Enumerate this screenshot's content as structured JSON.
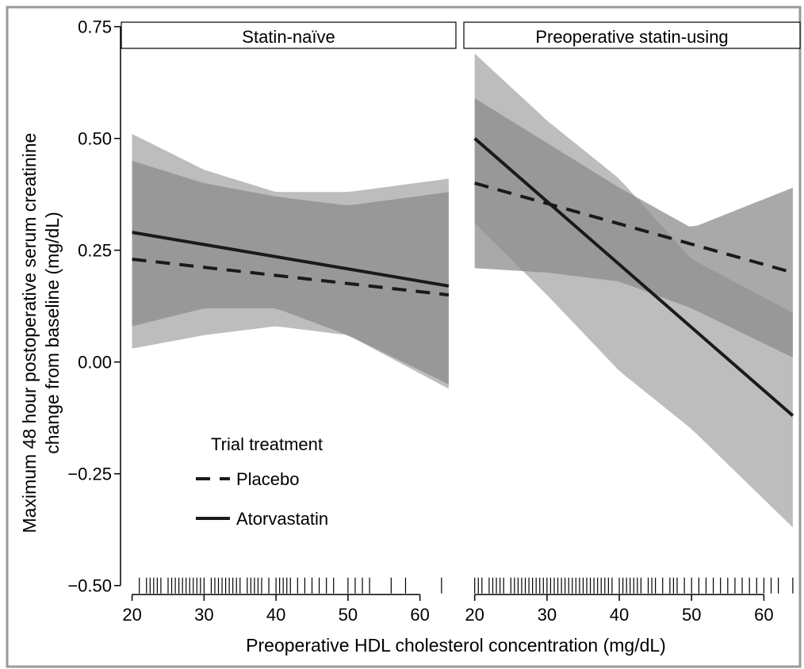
{
  "chart_data": {
    "type": "line",
    "facets": [
      "Statin-naïve",
      "Preoperative statin-using"
    ],
    "xlabel": "Preoperative HDL cholesterol concentration (mg/dL)",
    "ylabel_line1": "Maximum 48 hour postoperative serum creatinine",
    "ylabel_line2": "change from baseline (mg/dL)",
    "xlim": [
      18.5,
      65
    ],
    "ylim": [
      -0.52,
      0.76
    ],
    "x_ticks": [
      20,
      30,
      40,
      50,
      60
    ],
    "x_tick_labels": [
      "20",
      "30",
      "40",
      "50",
      "60"
    ],
    "y_ticks": [
      0.75,
      0.5,
      0.25,
      0.0,
      -0.25,
      -0.5
    ],
    "y_tick_labels": [
      "0.75",
      "0.50",
      "0.25",
      "0.00",
      "−0.25",
      "−0.50"
    ],
    "legend": {
      "title": "Trial treatment",
      "placement": "inside-bottom-left",
      "items": [
        {
          "label": "Placebo",
          "style": "dashed"
        },
        {
          "label": "Atorvastatin",
          "style": "solid"
        }
      ]
    },
    "colors": {
      "band_outer": "#bdbdbd",
      "band_inner": "#8c8c8c",
      "line": "#1a1a1a",
      "frame": "#9a9a9a"
    },
    "panels": [
      {
        "facet": "Statin-naïve",
        "series": [
          {
            "name": "Placebo",
            "style": "dashed",
            "x": [
              20,
              64
            ],
            "y": [
              0.23,
              0.15
            ],
            "band": {
              "x": [
                20,
                30,
                40,
                50,
                64
              ],
              "lower": [
                0.03,
                0.06,
                0.08,
                0.06,
                -0.06
              ],
              "upper": [
                0.51,
                0.43,
                0.38,
                0.38,
                0.41
              ]
            }
          },
          {
            "name": "Atorvastatin",
            "style": "solid",
            "x": [
              20,
              64
            ],
            "y": [
              0.29,
              0.17
            ],
            "band": {
              "x": [
                20,
                30,
                40,
                50,
                64
              ],
              "lower": [
                0.08,
                0.12,
                0.12,
                0.06,
                -0.05
              ],
              "upper": [
                0.45,
                0.4,
                0.37,
                0.35,
                0.38
              ]
            }
          }
        ],
        "rug": [
          21,
          22,
          22.5,
          23,
          23.5,
          24,
          25,
          25.5,
          26,
          26.5,
          27,
          27.5,
          28,
          28.5,
          29,
          29.5,
          30,
          31,
          31.5,
          32,
          32.5,
          33,
          33.5,
          34,
          34.5,
          35,
          36,
          36.5,
          37,
          37.5,
          38,
          39,
          40,
          40.5,
          41,
          41.5,
          42,
          43,
          44,
          45,
          46,
          47,
          48,
          50,
          51,
          52,
          53,
          56,
          58,
          63
        ]
      },
      {
        "facet": "Preoperative statin-using",
        "series": [
          {
            "name": "Placebo",
            "style": "dashed",
            "x": [
              20,
              64
            ],
            "y": [
              0.4,
              0.2
            ],
            "band": {
              "x": [
                20,
                30,
                40,
                50,
                64
              ],
              "lower": [
                0.21,
                0.2,
                0.18,
                0.12,
                0.01
              ],
              "upper": [
                0.59,
                0.49,
                0.39,
                0.3,
                0.39
              ]
            }
          },
          {
            "name": "Atorvastatin",
            "style": "solid",
            "x": [
              20,
              64
            ],
            "y": [
              0.5,
              -0.12
            ],
            "band": {
              "x": [
                20,
                30,
                40,
                50,
                64
              ],
              "lower": [
                0.31,
                0.15,
                -0.02,
                -0.15,
                -0.37
              ],
              "upper": [
                0.69,
                0.54,
                0.41,
                0.23,
                0.11
              ]
            }
          }
        ],
        "rug": [
          20,
          20.5,
          21,
          22,
          22.5,
          23,
          23.5,
          24,
          25,
          25.5,
          26,
          26.5,
          27,
          27.5,
          28,
          28.5,
          29,
          29.5,
          30,
          30.5,
          31,
          31.5,
          32,
          32.5,
          33,
          33.5,
          34,
          34.5,
          35,
          35.5,
          36,
          36.5,
          37,
          37.5,
          38,
          38.5,
          39,
          40,
          40.5,
          41,
          41.5,
          42,
          42.5,
          43,
          44,
          44.5,
          45,
          46,
          47,
          47.5,
          48,
          49,
          50,
          51,
          52,
          53,
          54,
          55,
          56,
          57,
          58,
          59,
          60,
          61,
          62,
          64
        ]
      }
    ]
  }
}
